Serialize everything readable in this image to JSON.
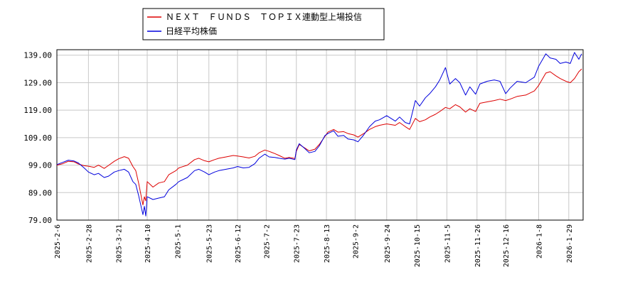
{
  "chart_data": {
    "type": "line",
    "title": "",
    "xlabel": "",
    "ylabel": "",
    "ylim": [
      79,
      141
    ],
    "yticks": [
      139.0,
      129.0,
      119.0,
      109.0,
      99.0,
      89.0,
      79.0
    ],
    "ytick_labels": [
      "139.00",
      "129.00",
      "119.00",
      "109.00",
      "99.00",
      "89.00",
      "79.00"
    ],
    "xlim": [
      "2025-02-06",
      "2026-02-08"
    ],
    "xticks": [
      "2025-2-6",
      "2025-2-28",
      "2025-3-21",
      "2025-4-10",
      "2025-5-1",
      "2025-5-23",
      "2025-6-12",
      "2025-7-2",
      "2025-7-23",
      "2025-8-13",
      "2025-9-2",
      "2025-9-24",
      "2025-10-15",
      "2025-11-5",
      "2025-11-26",
      "2025-12-16",
      "2026-1-8",
      "2026-1-29"
    ],
    "xtick_dates": [
      "2025-02-06",
      "2025-02-28",
      "2025-03-21",
      "2025-04-10",
      "2025-05-01",
      "2025-05-23",
      "2025-06-12",
      "2025-07-02",
      "2025-07-23",
      "2025-08-13",
      "2025-09-02",
      "2025-09-24",
      "2025-10-15",
      "2025-11-05",
      "2025-11-26",
      "2025-12-16",
      "2026-01-08",
      "2026-01-29"
    ],
    "grid": true,
    "legend_position": "top-left",
    "series": [
      {
        "name": "ＮＥＸＴ　ＦＵＮＤＳ　ＴＯＰＩＸ連動型上場投信",
        "color": "#dd0000",
        "points": [
          [
            "2025-02-06",
            99.0
          ],
          [
            "2025-02-10",
            99.5
          ],
          [
            "2025-02-14",
            100.4
          ],
          [
            "2025-02-18",
            100.2
          ],
          [
            "2025-02-21",
            99.4
          ],
          [
            "2025-02-25",
            98.8
          ],
          [
            "2025-02-28",
            98.6
          ],
          [
            "2025-03-04",
            98.2
          ],
          [
            "2025-03-07",
            99.0
          ],
          [
            "2025-03-11",
            97.8
          ],
          [
            "2025-03-14",
            98.9
          ],
          [
            "2025-03-18",
            100.4
          ],
          [
            "2025-03-21",
            101.3
          ],
          [
            "2025-03-25",
            102.1
          ],
          [
            "2025-03-28",
            101.5
          ],
          [
            "2025-03-31",
            98.5
          ],
          [
            "2025-04-02",
            97.0
          ],
          [
            "2025-04-04",
            92.5
          ],
          [
            "2025-04-07",
            84.5
          ],
          [
            "2025-04-08",
            87.5
          ],
          [
            "2025-04-09",
            86.0
          ],
          [
            "2025-04-10",
            93.0
          ],
          [
            "2025-04-14",
            91.0
          ],
          [
            "2025-04-18",
            92.5
          ],
          [
            "2025-04-22",
            93.0
          ],
          [
            "2025-04-25",
            95.5
          ],
          [
            "2025-04-30",
            97.0
          ],
          [
            "2025-05-02",
            98.0
          ],
          [
            "2025-05-08",
            99.0
          ],
          [
            "2025-05-13",
            101.0
          ],
          [
            "2025-05-16",
            101.5
          ],
          [
            "2025-05-20",
            100.6
          ],
          [
            "2025-05-23",
            100.2
          ],
          [
            "2025-05-27",
            101.0
          ],
          [
            "2025-05-30",
            101.5
          ],
          [
            "2025-06-04",
            102.0
          ],
          [
            "2025-06-09",
            102.5
          ],
          [
            "2025-06-12",
            102.3
          ],
          [
            "2025-06-16",
            102.0
          ],
          [
            "2025-06-20",
            101.6
          ],
          [
            "2025-06-24",
            102.2
          ],
          [
            "2025-06-27",
            103.5
          ],
          [
            "2025-07-01",
            104.5
          ],
          [
            "2025-07-04",
            104.0
          ],
          [
            "2025-07-08",
            103.2
          ],
          [
            "2025-07-11",
            102.5
          ],
          [
            "2025-07-15",
            101.5
          ],
          [
            "2025-07-18",
            101.8
          ],
          [
            "2025-07-22",
            101.4
          ],
          [
            "2025-07-23",
            104.0
          ],
          [
            "2025-07-25",
            106.5
          ],
          [
            "2025-07-29",
            105.2
          ],
          [
            "2025-08-01",
            104.2
          ],
          [
            "2025-08-05",
            104.8
          ],
          [
            "2025-08-08",
            106.5
          ],
          [
            "2025-08-12",
            109.5
          ],
          [
            "2025-08-14",
            111.0
          ],
          [
            "2025-08-18",
            112.0
          ],
          [
            "2025-08-21",
            111.0
          ],
          [
            "2025-08-25",
            111.2
          ],
          [
            "2025-08-28",
            110.5
          ],
          [
            "2025-09-01",
            110.0
          ],
          [
            "2025-09-04",
            109.2
          ],
          [
            "2025-09-08",
            110.5
          ],
          [
            "2025-09-12",
            112.0
          ],
          [
            "2025-09-16",
            113.0
          ],
          [
            "2025-09-19",
            113.5
          ],
          [
            "2025-09-24",
            114.0
          ],
          [
            "2025-09-30",
            113.5
          ],
          [
            "2025-10-03",
            114.5
          ],
          [
            "2025-10-07",
            113.0
          ],
          [
            "2025-10-10",
            112.0
          ],
          [
            "2025-10-14",
            116.0
          ],
          [
            "2025-10-17",
            114.8
          ],
          [
            "2025-10-21",
            115.5
          ],
          [
            "2025-10-24",
            116.5
          ],
          [
            "2025-10-28",
            117.5
          ],
          [
            "2025-10-31",
            118.5
          ],
          [
            "2025-11-04",
            120.0
          ],
          [
            "2025-11-07",
            119.5
          ],
          [
            "2025-11-11",
            121.0
          ],
          [
            "2025-11-14",
            120.2
          ],
          [
            "2025-11-18",
            118.3
          ],
          [
            "2025-11-21",
            119.5
          ],
          [
            "2025-11-25",
            118.5
          ],
          [
            "2025-11-28",
            121.5
          ],
          [
            "2025-12-03",
            122.0
          ],
          [
            "2025-12-08",
            122.5
          ],
          [
            "2025-12-12",
            123.0
          ],
          [
            "2025-12-16",
            122.5
          ],
          [
            "2025-12-19",
            123.0
          ],
          [
            "2025-12-24",
            124.0
          ],
          [
            "2025-12-30",
            124.5
          ],
          [
            "2026-01-05",
            126.0
          ],
          [
            "2026-01-08",
            128.0
          ],
          [
            "2026-01-13",
            132.5
          ],
          [
            "2026-01-16",
            133.0
          ],
          [
            "2026-01-20",
            131.5
          ],
          [
            "2026-01-23",
            130.5
          ],
          [
            "2026-01-27",
            129.5
          ],
          [
            "2026-01-30",
            129.0
          ],
          [
            "2026-02-02",
            130.5
          ],
          [
            "2026-02-05",
            133.0
          ],
          [
            "2026-02-07",
            134.0
          ]
        ]
      },
      {
        "name": "日経平均株価",
        "color": "#0000dd",
        "points": [
          [
            "2025-02-06",
            99.2
          ],
          [
            "2025-02-10",
            100.0
          ],
          [
            "2025-02-14",
            100.8
          ],
          [
            "2025-02-18",
            100.5
          ],
          [
            "2025-02-21",
            99.8
          ],
          [
            "2025-02-25",
            98.0
          ],
          [
            "2025-02-28",
            96.5
          ],
          [
            "2025-03-04",
            95.5
          ],
          [
            "2025-03-07",
            96.0
          ],
          [
            "2025-03-11",
            94.5
          ],
          [
            "2025-03-14",
            95.0
          ],
          [
            "2025-03-18",
            96.5
          ],
          [
            "2025-03-21",
            97.0
          ],
          [
            "2025-03-25",
            97.5
          ],
          [
            "2025-03-28",
            96.5
          ],
          [
            "2025-03-31",
            93.0
          ],
          [
            "2025-04-02",
            92.0
          ],
          [
            "2025-04-04",
            88.0
          ],
          [
            "2025-04-07",
            81.0
          ],
          [
            "2025-04-08",
            84.0
          ],
          [
            "2025-04-09",
            80.5
          ],
          [
            "2025-04-10",
            87.5
          ],
          [
            "2025-04-14",
            86.5
          ],
          [
            "2025-04-18",
            87.0
          ],
          [
            "2025-04-22",
            87.5
          ],
          [
            "2025-04-25",
            90.0
          ],
          [
            "2025-04-30",
            92.0
          ],
          [
            "2025-05-02",
            93.0
          ],
          [
            "2025-05-08",
            94.5
          ],
          [
            "2025-05-13",
            97.0
          ],
          [
            "2025-05-16",
            97.5
          ],
          [
            "2025-05-20",
            96.5
          ],
          [
            "2025-05-23",
            95.5
          ],
          [
            "2025-05-27",
            96.5
          ],
          [
            "2025-05-30",
            97.0
          ],
          [
            "2025-06-04",
            97.5
          ],
          [
            "2025-06-09",
            98.0
          ],
          [
            "2025-06-12",
            98.5
          ],
          [
            "2025-06-16",
            98.0
          ],
          [
            "2025-06-20",
            98.2
          ],
          [
            "2025-06-24",
            99.5
          ],
          [
            "2025-06-27",
            101.5
          ],
          [
            "2025-07-01",
            103.0
          ],
          [
            "2025-07-04",
            102.0
          ],
          [
            "2025-07-08",
            101.8
          ],
          [
            "2025-07-11",
            101.5
          ],
          [
            "2025-07-15",
            101.2
          ],
          [
            "2025-07-18",
            101.5
          ],
          [
            "2025-07-22",
            101.0
          ],
          [
            "2025-07-23",
            104.5
          ],
          [
            "2025-07-25",
            106.8
          ],
          [
            "2025-07-29",
            105.0
          ],
          [
            "2025-08-01",
            103.5
          ],
          [
            "2025-08-05",
            104.0
          ],
          [
            "2025-08-08",
            106.0
          ],
          [
            "2025-08-12",
            109.8
          ],
          [
            "2025-08-14",
            110.5
          ],
          [
            "2025-08-18",
            111.5
          ],
          [
            "2025-08-21",
            109.5
          ],
          [
            "2025-08-25",
            109.8
          ],
          [
            "2025-08-28",
            108.5
          ],
          [
            "2025-09-01",
            108.2
          ],
          [
            "2025-09-04",
            107.5
          ],
          [
            "2025-09-08",
            110.0
          ],
          [
            "2025-09-12",
            113.0
          ],
          [
            "2025-09-16",
            115.0
          ],
          [
            "2025-09-19",
            115.5
          ],
          [
            "2025-09-24",
            117.0
          ],
          [
            "2025-09-30",
            115.0
          ],
          [
            "2025-10-03",
            116.5
          ],
          [
            "2025-10-07",
            114.5
          ],
          [
            "2025-10-10",
            114.0
          ],
          [
            "2025-10-14",
            122.5
          ],
          [
            "2025-10-17",
            120.5
          ],
          [
            "2025-10-21",
            123.5
          ],
          [
            "2025-10-24",
            125.0
          ],
          [
            "2025-10-28",
            127.5
          ],
          [
            "2025-10-31",
            130.0
          ],
          [
            "2025-11-04",
            134.5
          ],
          [
            "2025-11-07",
            128.5
          ],
          [
            "2025-11-11",
            130.5
          ],
          [
            "2025-11-14",
            129.0
          ],
          [
            "2025-11-18",
            124.5
          ],
          [
            "2025-11-21",
            127.5
          ],
          [
            "2025-11-25",
            124.8
          ],
          [
            "2025-11-28",
            128.5
          ],
          [
            "2025-12-03",
            129.5
          ],
          [
            "2025-12-08",
            130.0
          ],
          [
            "2025-12-12",
            129.5
          ],
          [
            "2025-12-16",
            125.0
          ],
          [
            "2025-12-19",
            127.0
          ],
          [
            "2025-12-24",
            129.5
          ],
          [
            "2025-12-30",
            129.0
          ],
          [
            "2026-01-05",
            131.0
          ],
          [
            "2026-01-08",
            135.0
          ],
          [
            "2026-01-13",
            139.5
          ],
          [
            "2026-01-16",
            138.0
          ],
          [
            "2026-01-20",
            137.5
          ],
          [
            "2026-01-23",
            136.0
          ],
          [
            "2026-01-27",
            136.5
          ],
          [
            "2026-01-30",
            136.0
          ],
          [
            "2026-02-02",
            140.0
          ],
          [
            "2026-02-05",
            137.5
          ],
          [
            "2026-02-07",
            139.5
          ]
        ]
      }
    ]
  }
}
